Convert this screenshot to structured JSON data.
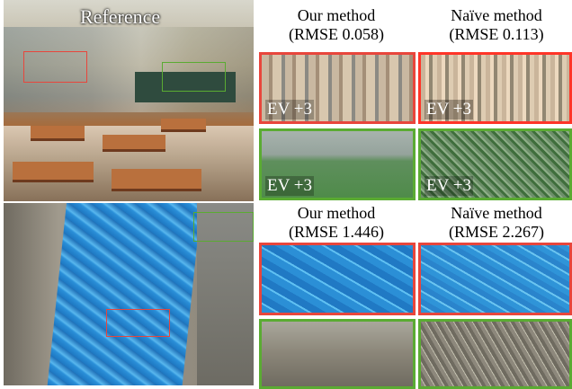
{
  "figure": {
    "reference_label": "Reference",
    "scene1": {
      "ours_title": "Our method",
      "ours_rmse": "(RMSE 0.058)",
      "naive_title": "Naïve method",
      "naive_rmse": "(RMSE 0.113)",
      "ev_label": "EV +3"
    },
    "scene2": {
      "ours_title": "Our method",
      "ours_rmse": "(RMSE 1.446)",
      "naive_title": "Naïve method",
      "naive_rmse": "(RMSE 2.267)"
    },
    "colors": {
      "red_box": "#e8463c",
      "green_box": "#5aab32"
    }
  }
}
